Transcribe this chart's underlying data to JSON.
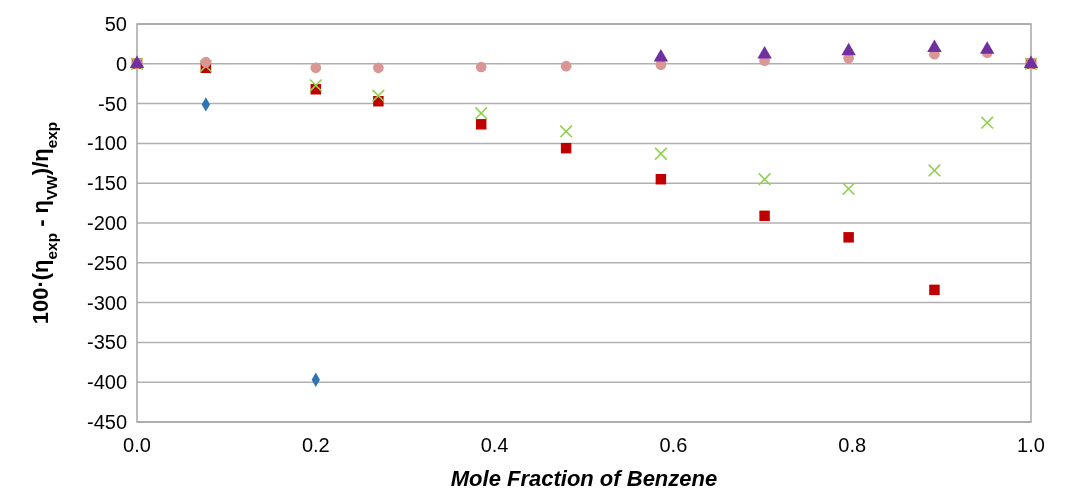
{
  "chart_data": {
    "type": "scatter",
    "xlabel": "Mole Fraction of Benzene",
    "ylabel": "100·(η$_{exp}$ - η$_{VW}$)/η$_{exp}$",
    "xlim": [
      0,
      1
    ],
    "xticks": [
      {
        "value": 0,
        "label": "0.0"
      },
      {
        "value": 0.2,
        "label": "0.2"
      },
      {
        "value": 0.4,
        "label": "0.4"
      },
      {
        "value": 0.6,
        "label": "0.6"
      },
      {
        "value": 0.8,
        "label": "0.8"
      },
      {
        "value": 1,
        "label": "1.0"
      }
    ],
    "ylim": [
      -450,
      50
    ],
    "yticks": [
      50,
      0,
      -50,
      -100,
      -150,
      -200,
      -250,
      -300,
      -350,
      -400,
      -450
    ],
    "grid": "y",
    "series": [
      {
        "color": "#2e75b6",
        "marker": "diamond",
        "x": [
          0.077,
          0.2
        ],
        "values": [
          -51,
          -397
        ]
      },
      {
        "color": "#c00000",
        "marker": "square",
        "x": [
          0,
          0.077,
          0.2,
          0.27,
          0.385,
          0.48,
          0.586,
          0.702,
          0.796,
          0.892,
          1
        ],
        "values": [
          0,
          -5,
          -32,
          -47,
          -76,
          -106,
          -145,
          -191,
          -218,
          -284,
          0
        ]
      },
      {
        "color": "#92d050",
        "marker": "cross",
        "x": [
          0,
          0.077,
          0.2,
          0.27,
          0.385,
          0.48,
          0.586,
          0.702,
          0.796,
          0.892,
          0.951,
          1
        ],
        "values": [
          0,
          -3,
          -27,
          -40,
          -62,
          -85,
          -113,
          -145,
          -157,
          -134,
          -74,
          0
        ]
      },
      {
        "color": "#d99694",
        "marker": "circle",
        "x": [
          0,
          0.077,
          0.2,
          0.27,
          0.385,
          0.48,
          0.586,
          0.702,
          0.796,
          0.892,
          0.951,
          1
        ],
        "values": [
          0,
          2,
          -5,
          -5,
          -4,
          -3,
          -1,
          4,
          7,
          12,
          14,
          0
        ]
      },
      {
        "color": "#7030a0",
        "marker": "triangle",
        "x": [
          0,
          0.586,
          0.702,
          0.796,
          0.892,
          0.951,
          1
        ],
        "values": [
          0,
          8,
          12,
          16,
          20,
          18,
          0
        ]
      }
    ]
  }
}
